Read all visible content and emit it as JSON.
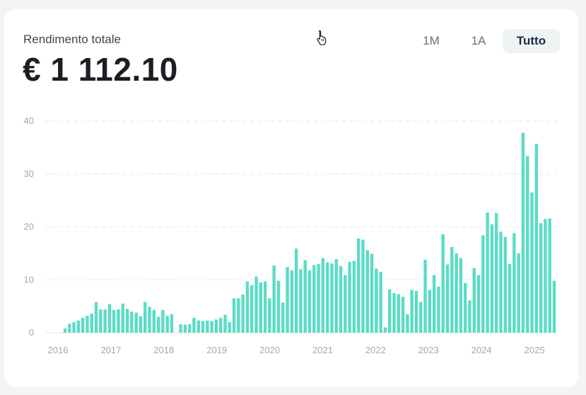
{
  "summary": {
    "label": "Rendimento totale",
    "value": "€ 1 112.10"
  },
  "ranges": [
    {
      "label": "1M",
      "active": false
    },
    {
      "label": "1A",
      "active": false
    },
    {
      "label": "Tutto",
      "active": true
    }
  ],
  "icons": {
    "cursor": "hand-pointer-icon"
  },
  "colors": {
    "bar": "#5bdcc6",
    "active_range_bg": "#eef3f4",
    "active_range_text": "#1d2b45"
  },
  "chart_data": {
    "type": "bar",
    "ylim": [
      0,
      40
    ],
    "yticks": [
      0,
      10,
      20,
      30,
      40
    ],
    "xtick_labels": [
      "2016",
      "2017",
      "2018",
      "2019",
      "2020",
      "2021",
      "2022",
      "2023",
      "2024",
      "2025"
    ],
    "grid": true,
    "values": [
      0.8,
      1.7,
      2.0,
      2.3,
      2.8,
      3.2,
      3.6,
      5.8,
      4.4,
      4.4,
      5.4,
      4.3,
      4.4,
      5.5,
      4.5,
      4.0,
      3.8,
      3.1,
      5.8,
      4.9,
      4.3,
      3.0,
      4.3,
      3.2,
      3.5,
      0,
      1.6,
      1.5,
      1.6,
      2.8,
      2.3,
      2.2,
      2.3,
      2.2,
      2.5,
      2.8,
      3.4,
      2.0,
      6.5,
      6.5,
      7.2,
      9.7,
      9.0,
      10.6,
      9.5,
      9.7,
      6.5,
      12.7,
      9.8,
      5.7,
      12.4,
      11.8,
      15.9,
      12.0,
      13.7,
      11.8,
      12.8,
      13.0,
      14.1,
      13.3,
      13.1,
      13.9,
      12.6,
      10.9,
      13.4,
      13.6,
      17.8,
      17.6,
      15.6,
      14.9,
      12.1,
      11.5,
      1.0,
      8.2,
      7.5,
      7.3,
      6.8,
      3.5,
      8.1,
      7.9,
      5.8,
      13.8,
      8.1,
      10.9,
      8.7,
      18.6,
      12.9,
      16.2,
      15.0,
      14.1,
      9.4,
      6.1,
      12.2,
      10.9,
      18.4,
      22.7,
      20.5,
      22.6,
      19.1,
      18.1,
      13.0,
      18.8,
      15.0,
      37.8,
      33.4,
      26.5,
      35.7,
      20.7,
      21.5,
      21.6,
      9.8
    ]
  }
}
